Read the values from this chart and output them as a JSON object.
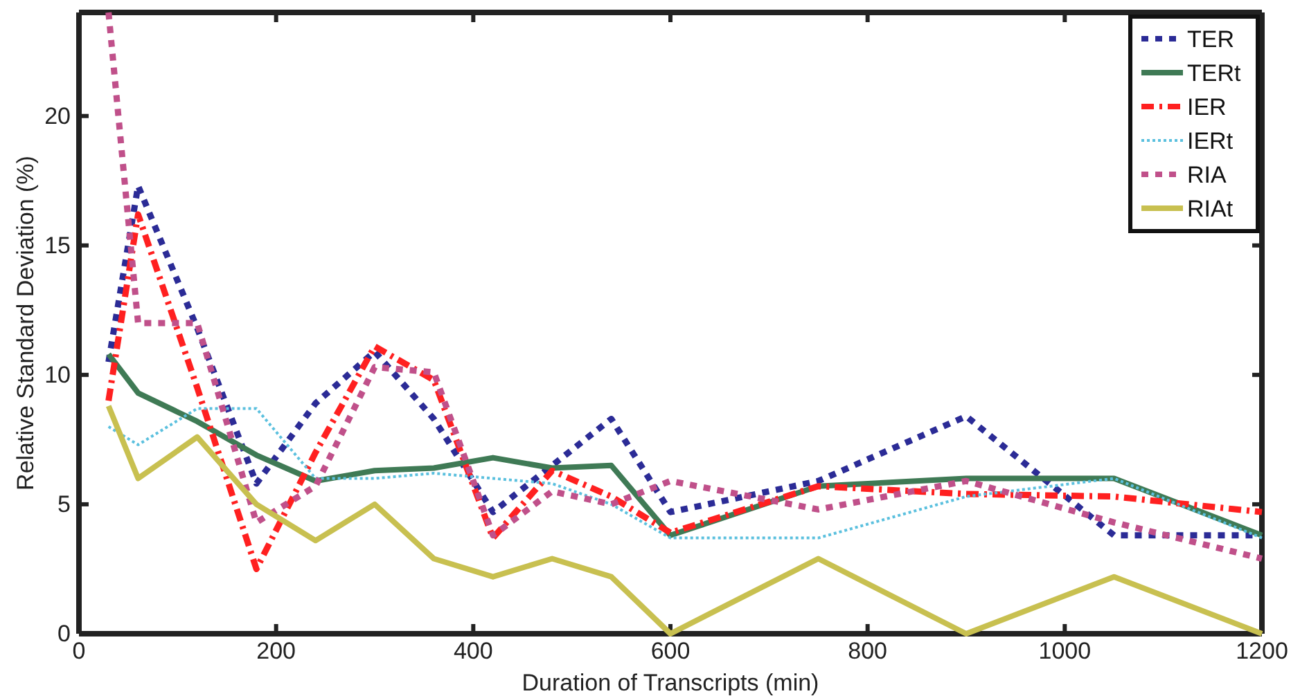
{
  "chart_data": {
    "type": "line",
    "xlabel": "Duration of Transcripts (min)",
    "ylabel": "Relative Standard Deviation (%)",
    "x": [
      30,
      60,
      120,
      180,
      240,
      300,
      360,
      420,
      480,
      540,
      600,
      750,
      900,
      1050,
      1200
    ],
    "xlim": [
      0,
      1200
    ],
    "xticks": [
      0,
      200,
      400,
      600,
      800,
      1000,
      1200
    ],
    "ylim": [
      0,
      24
    ],
    "yticks": [
      0,
      5,
      10,
      15,
      20
    ],
    "grid": false,
    "legend": "top right",
    "marker": "none",
    "series": [
      {
        "name": "TER",
        "color": "#2b2b96",
        "line_style": "dotted",
        "values": [
          10.5,
          17.3,
          11.8,
          5.8,
          8.9,
          10.9,
          8.3,
          4.7,
          6.5,
          8.3,
          4.7,
          5.9,
          8.4,
          3.8,
          3.8
        ]
      },
      {
        "name": "TERt",
        "color": "#3f7a55",
        "line_style": "solid",
        "values": [
          10.8,
          9.3,
          8.2,
          6.9,
          5.9,
          6.3,
          6.4,
          6.8,
          6.4,
          6.5,
          3.8,
          5.7,
          6.0,
          6.0,
          3.8
        ]
      },
      {
        "name": "IER",
        "color": "#ff2020",
        "line_style": "dashed",
        "values": [
          9.0,
          16.2,
          9.5,
          2.5,
          7.0,
          11.1,
          9.8,
          3.7,
          6.3,
          5.3,
          3.9,
          5.7,
          5.4,
          5.3,
          4.7
        ]
      },
      {
        "name": "IERt",
        "color": "#5bc0de",
        "line_style": "dotted",
        "values": [
          8.0,
          7.3,
          8.7,
          8.7,
          6.0,
          6.0,
          6.2,
          6.0,
          5.8,
          5.0,
          3.7,
          3.7,
          5.3,
          6.0,
          3.7
        ]
      },
      {
        "name": "RIA",
        "color": "#c0508a",
        "line_style": "dotted",
        "values": [
          24,
          12,
          12,
          4.3,
          5.7,
          10.3,
          10.1,
          3.8,
          5.5,
          5.0,
          5.9,
          4.8,
          5.9,
          4.3,
          2.9
        ]
      },
      {
        "name": "RIAt",
        "color": "#c8c050",
        "line_style": "solid",
        "values": [
          8.8,
          6.0,
          7.6,
          5.0,
          3.6,
          5.0,
          2.9,
          2.2,
          2.9,
          2.2,
          0,
          2.9,
          0,
          2.2,
          0
        ]
      }
    ]
  }
}
